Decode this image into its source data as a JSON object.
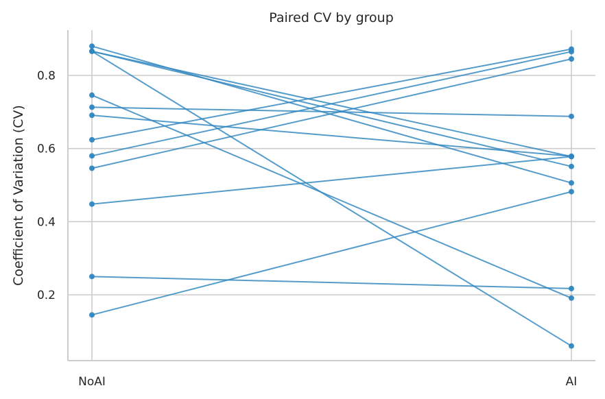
{
  "chart_data": {
    "type": "line",
    "title": "Paired CV by group",
    "xlabel": "",
    "ylabel": "Coefficient of Variation (CV)",
    "categories": [
      "NoAI",
      "AI"
    ],
    "yticks": [
      "0.2",
      "0.4",
      "0.6",
      "0.8"
    ],
    "ylim": [
      0.02,
      0.92
    ],
    "grid": true,
    "line_color": "#2f86c0",
    "pairs": [
      [
        0.88,
        0.506
      ],
      [
        0.866,
        0.578
      ],
      [
        0.866,
        0.551
      ],
      [
        0.866,
        0.06
      ],
      [
        0.746,
        0.191
      ],
      [
        0.713,
        0.688
      ],
      [
        0.691,
        0.579
      ],
      [
        0.624,
        0.872
      ],
      [
        0.58,
        0.865
      ],
      [
        0.546,
        0.845
      ],
      [
        0.448,
        0.578
      ],
      [
        0.25,
        0.217
      ],
      [
        0.145,
        0.482
      ]
    ]
  }
}
